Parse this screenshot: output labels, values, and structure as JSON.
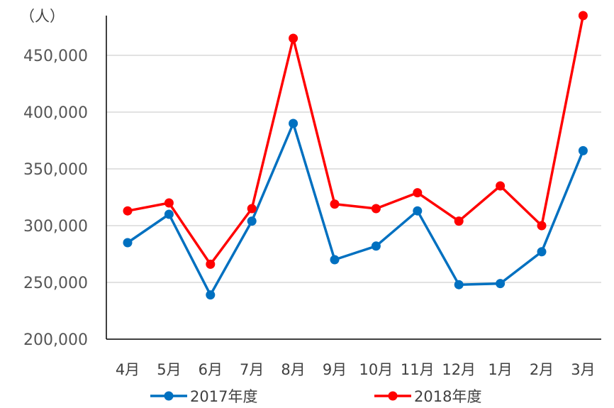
{
  "chart_data": {
    "type": "line",
    "ylabel": "（人）",
    "categories": [
      "4月",
      "5月",
      "6月",
      "7月",
      "8月",
      "9月",
      "10月",
      "11月",
      "12月",
      "1月",
      "2月",
      "3月"
    ],
    "ylim": [
      200000,
      480000
    ],
    "yticks": [
      200000,
      250000,
      300000,
      350000,
      400000,
      450000
    ],
    "ytick_labels": [
      "200,000",
      "250,000",
      "300,000",
      "350,000",
      "400,000",
      "450,000"
    ],
    "grid": true,
    "legend_position": "bottom",
    "series": [
      {
        "name": "2017年度",
        "color": "#0070C0",
        "values": [
          285000,
          310000,
          239000,
          304000,
          390000,
          270000,
          282000,
          313000,
          248000,
          249000,
          277000,
          366000
        ]
      },
      {
        "name": "2018年度",
        "color": "#FF0000",
        "values": [
          313000,
          320000,
          266000,
          315000,
          465000,
          319000,
          315000,
          329000,
          304000,
          335000,
          300000,
          485000
        ]
      }
    ]
  }
}
